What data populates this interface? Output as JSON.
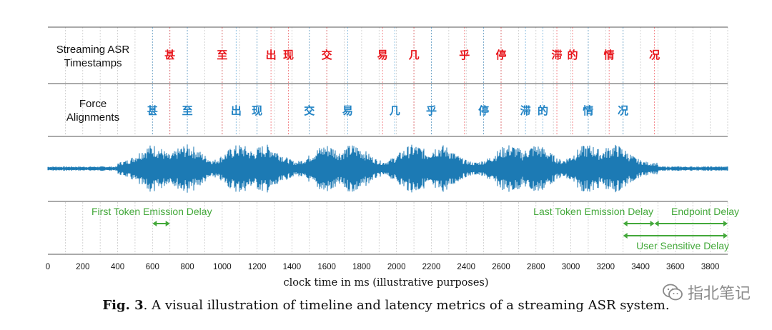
{
  "rows": {
    "streaming_label": [
      "Streaming ASR",
      "Timestamps"
    ],
    "force_label": [
      "Force",
      "Alignments"
    ]
  },
  "streaming_tokens": [
    {
      "ms": 700,
      "char": "甚"
    },
    {
      "ms": 1000,
      "char": "至"
    },
    {
      "ms": 1280,
      "char": "出"
    },
    {
      "ms": 1380,
      "char": "现"
    },
    {
      "ms": 1600,
      "char": "交"
    },
    {
      "ms": 1920,
      "char": "易"
    },
    {
      "ms": 2100,
      "char": "几"
    },
    {
      "ms": 2390,
      "char": "乎"
    },
    {
      "ms": 2600,
      "char": "停"
    },
    {
      "ms": 2920,
      "char": "滞"
    },
    {
      "ms": 3010,
      "char": "的"
    },
    {
      "ms": 3220,
      "char": "情"
    },
    {
      "ms": 3480,
      "char": "况"
    }
  ],
  "force_tokens": [
    {
      "ms": 600,
      "char": "甚"
    },
    {
      "ms": 800,
      "char": "至"
    },
    {
      "ms": 1080,
      "char": "出"
    },
    {
      "ms": 1200,
      "char": "现"
    },
    {
      "ms": 1500,
      "char": "交"
    },
    {
      "ms": 1720,
      "char": "易"
    },
    {
      "ms": 1990,
      "char": "几"
    },
    {
      "ms": 2200,
      "char": "乎"
    },
    {
      "ms": 2500,
      "char": "停"
    },
    {
      "ms": 2740,
      "char": "滞"
    },
    {
      "ms": 2840,
      "char": "的"
    },
    {
      "ms": 3100,
      "char": "情"
    },
    {
      "ms": 3300,
      "char": "况"
    }
  ],
  "latency_metrics": [
    {
      "label": "First Token Emission Delay",
      "start_ms": 600,
      "end_ms": 700
    },
    {
      "label": "Last Token Emission Delay",
      "start_ms": 3300,
      "end_ms": 3480
    },
    {
      "label": "Endpoint Delay",
      "start_ms": 3480,
      "end_ms": 3900
    },
    {
      "label": "User Sensitive Delay",
      "start_ms": 3300,
      "end_ms": 3900
    }
  ],
  "axis": {
    "title": "clock time in ms (illustrative purposes)",
    "min": 0,
    "max": 3900,
    "ticks": [
      0,
      200,
      400,
      600,
      800,
      1000,
      1200,
      1400,
      1600,
      1800,
      2000,
      2200,
      2400,
      2600,
      2800,
      3000,
      3200,
      3400,
      3600,
      3800
    ]
  },
  "caption": {
    "label": "Fig. 3",
    "text": ". A visual illustration of timeline and latency metrics of a streaming ASR system."
  },
  "watermark": {
    "text": "指北笔记",
    "icon": "wechat-icon"
  },
  "colors": {
    "streaming": "#e8151b",
    "force": "#1f82c4",
    "waveform": "#1c7ab4",
    "metrics": "#43a83a",
    "grid": "#c9c9c9"
  }
}
